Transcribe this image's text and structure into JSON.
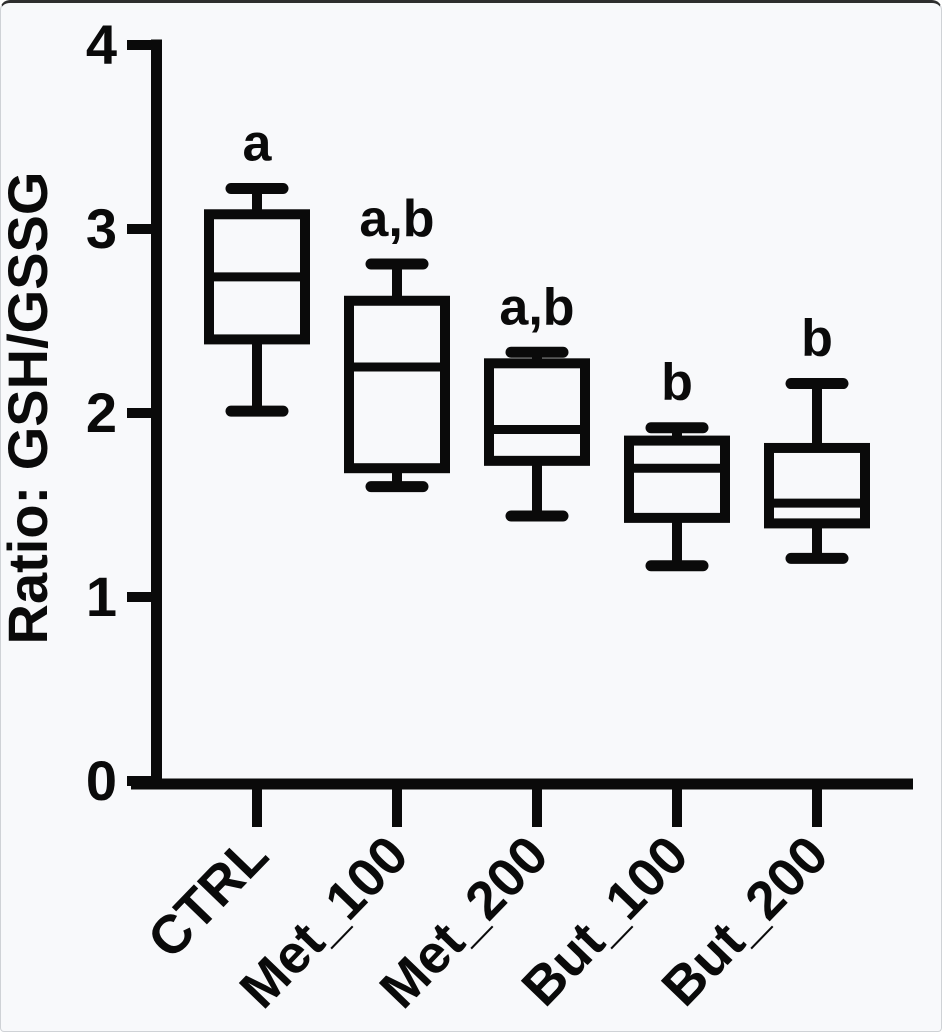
{
  "figure": {
    "background": "#f8f9fb",
    "ink": "#0a0a0a"
  },
  "chart_data": {
    "type": "box",
    "title": "",
    "xlabel": "",
    "ylabel": "Ratio: GSH/GSSG",
    "ylim": [
      0,
      4
    ],
    "yticks": [
      0,
      1,
      2,
      3,
      4
    ],
    "grid": false,
    "legend_position": "none",
    "x_tick_label_rotation_deg": -46,
    "categories": [
      "CTRL",
      "Met_100",
      "Met_200",
      "But_100",
      "But_200"
    ],
    "series": [
      {
        "category": "CTRL",
        "whisker_low": 2.01,
        "q1": 2.4,
        "median": 2.74,
        "q3": 3.08,
        "whisker_high": 3.22,
        "sig_label": "a"
      },
      {
        "category": "Met_100",
        "whisker_low": 1.6,
        "q1": 1.7,
        "median": 2.25,
        "q3": 2.61,
        "whisker_high": 2.81,
        "sig_label": "a,b"
      },
      {
        "category": "Met_200",
        "whisker_low": 1.44,
        "q1": 1.74,
        "median": 1.91,
        "q3": 2.27,
        "whisker_high": 2.33,
        "sig_label": "a,b"
      },
      {
        "category": "But_100",
        "whisker_low": 1.17,
        "q1": 1.43,
        "median": 1.7,
        "q3": 1.85,
        "whisker_high": 1.92,
        "sig_label": "b"
      },
      {
        "category": "But_200",
        "whisker_low": 1.21,
        "q1": 1.4,
        "median": 1.51,
        "q3": 1.81,
        "whisker_high": 2.16,
        "sig_label": "b"
      }
    ]
  }
}
